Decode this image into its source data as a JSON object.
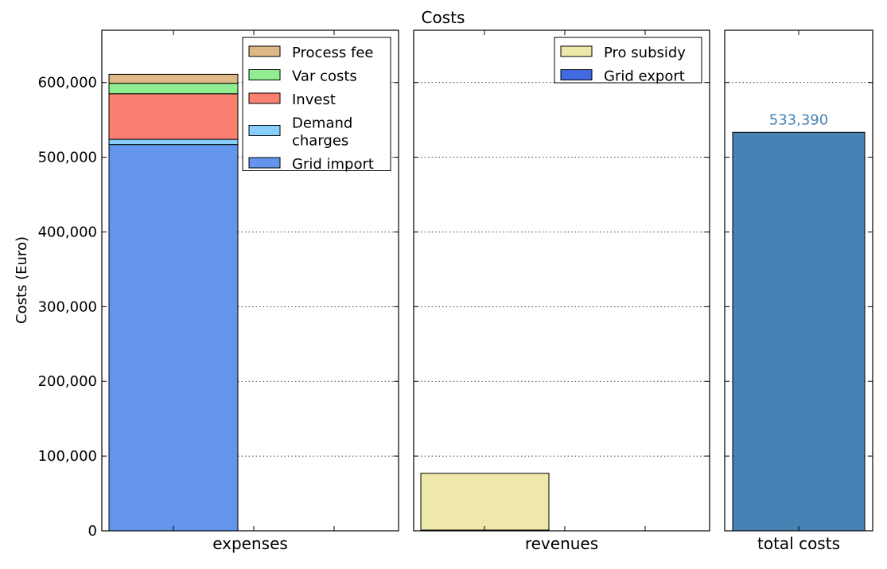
{
  "chart_data": {
    "type": "bar",
    "title": "Costs",
    "ylabel": "Costs (Euro)",
    "ylim": [
      0,
      670000
    ],
    "yticks": [
      0,
      100000,
      200000,
      300000,
      400000,
      500000,
      600000
    ],
    "ytick_labels": [
      "0",
      "100,000",
      "200,000",
      "300,000",
      "400,000",
      "500,000",
      "600,000"
    ],
    "grid": "horizontal dotted",
    "panels": [
      {
        "category": "expenses",
        "stacked": true,
        "legend_placement": "top-right",
        "series": [
          {
            "name": "Grid import",
            "value": 517000,
            "color": "#6495ED"
          },
          {
            "name": "Demand\ncharges",
            "value": 7000,
            "color": "#87CEFA"
          },
          {
            "name": "Invest",
            "value": 61000,
            "color": "#FA8072"
          },
          {
            "name": "Var costs",
            "value": 14000,
            "color": "#90EE90"
          },
          {
            "name": "Process fee",
            "value": 12000,
            "color": "#DEB887"
          }
        ]
      },
      {
        "category": "revenues",
        "stacked": true,
        "legend_placement": "top-right",
        "series": [
          {
            "name": "Grid export",
            "value": 1000,
            "color": "#4169E1"
          },
          {
            "name": "Pro subsidy",
            "value": 76000,
            "color": "#EEE8AA"
          }
        ]
      },
      {
        "category": "total costs",
        "stacked": false,
        "series": [
          {
            "name": "",
            "value": 533390,
            "color": "#4682B4"
          }
        ],
        "data_label": "533,390",
        "data_label_color": "#4682B4"
      }
    ]
  }
}
